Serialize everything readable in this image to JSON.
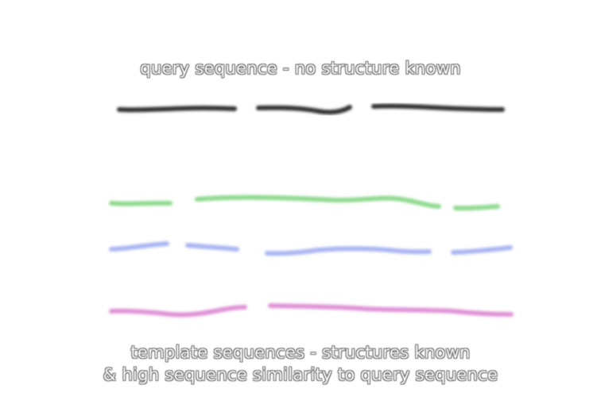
{
  "labels": {
    "query": "query sequence - no structure known",
    "template_line1": "template sequences - structures known",
    "template_line2": "& high sequence similarity to query sequence"
  },
  "colors": {
    "query": "#333333",
    "template_green": "#8fd98f",
    "template_blue": "#a9b5f2",
    "template_magenta": "#df92d6"
  }
}
